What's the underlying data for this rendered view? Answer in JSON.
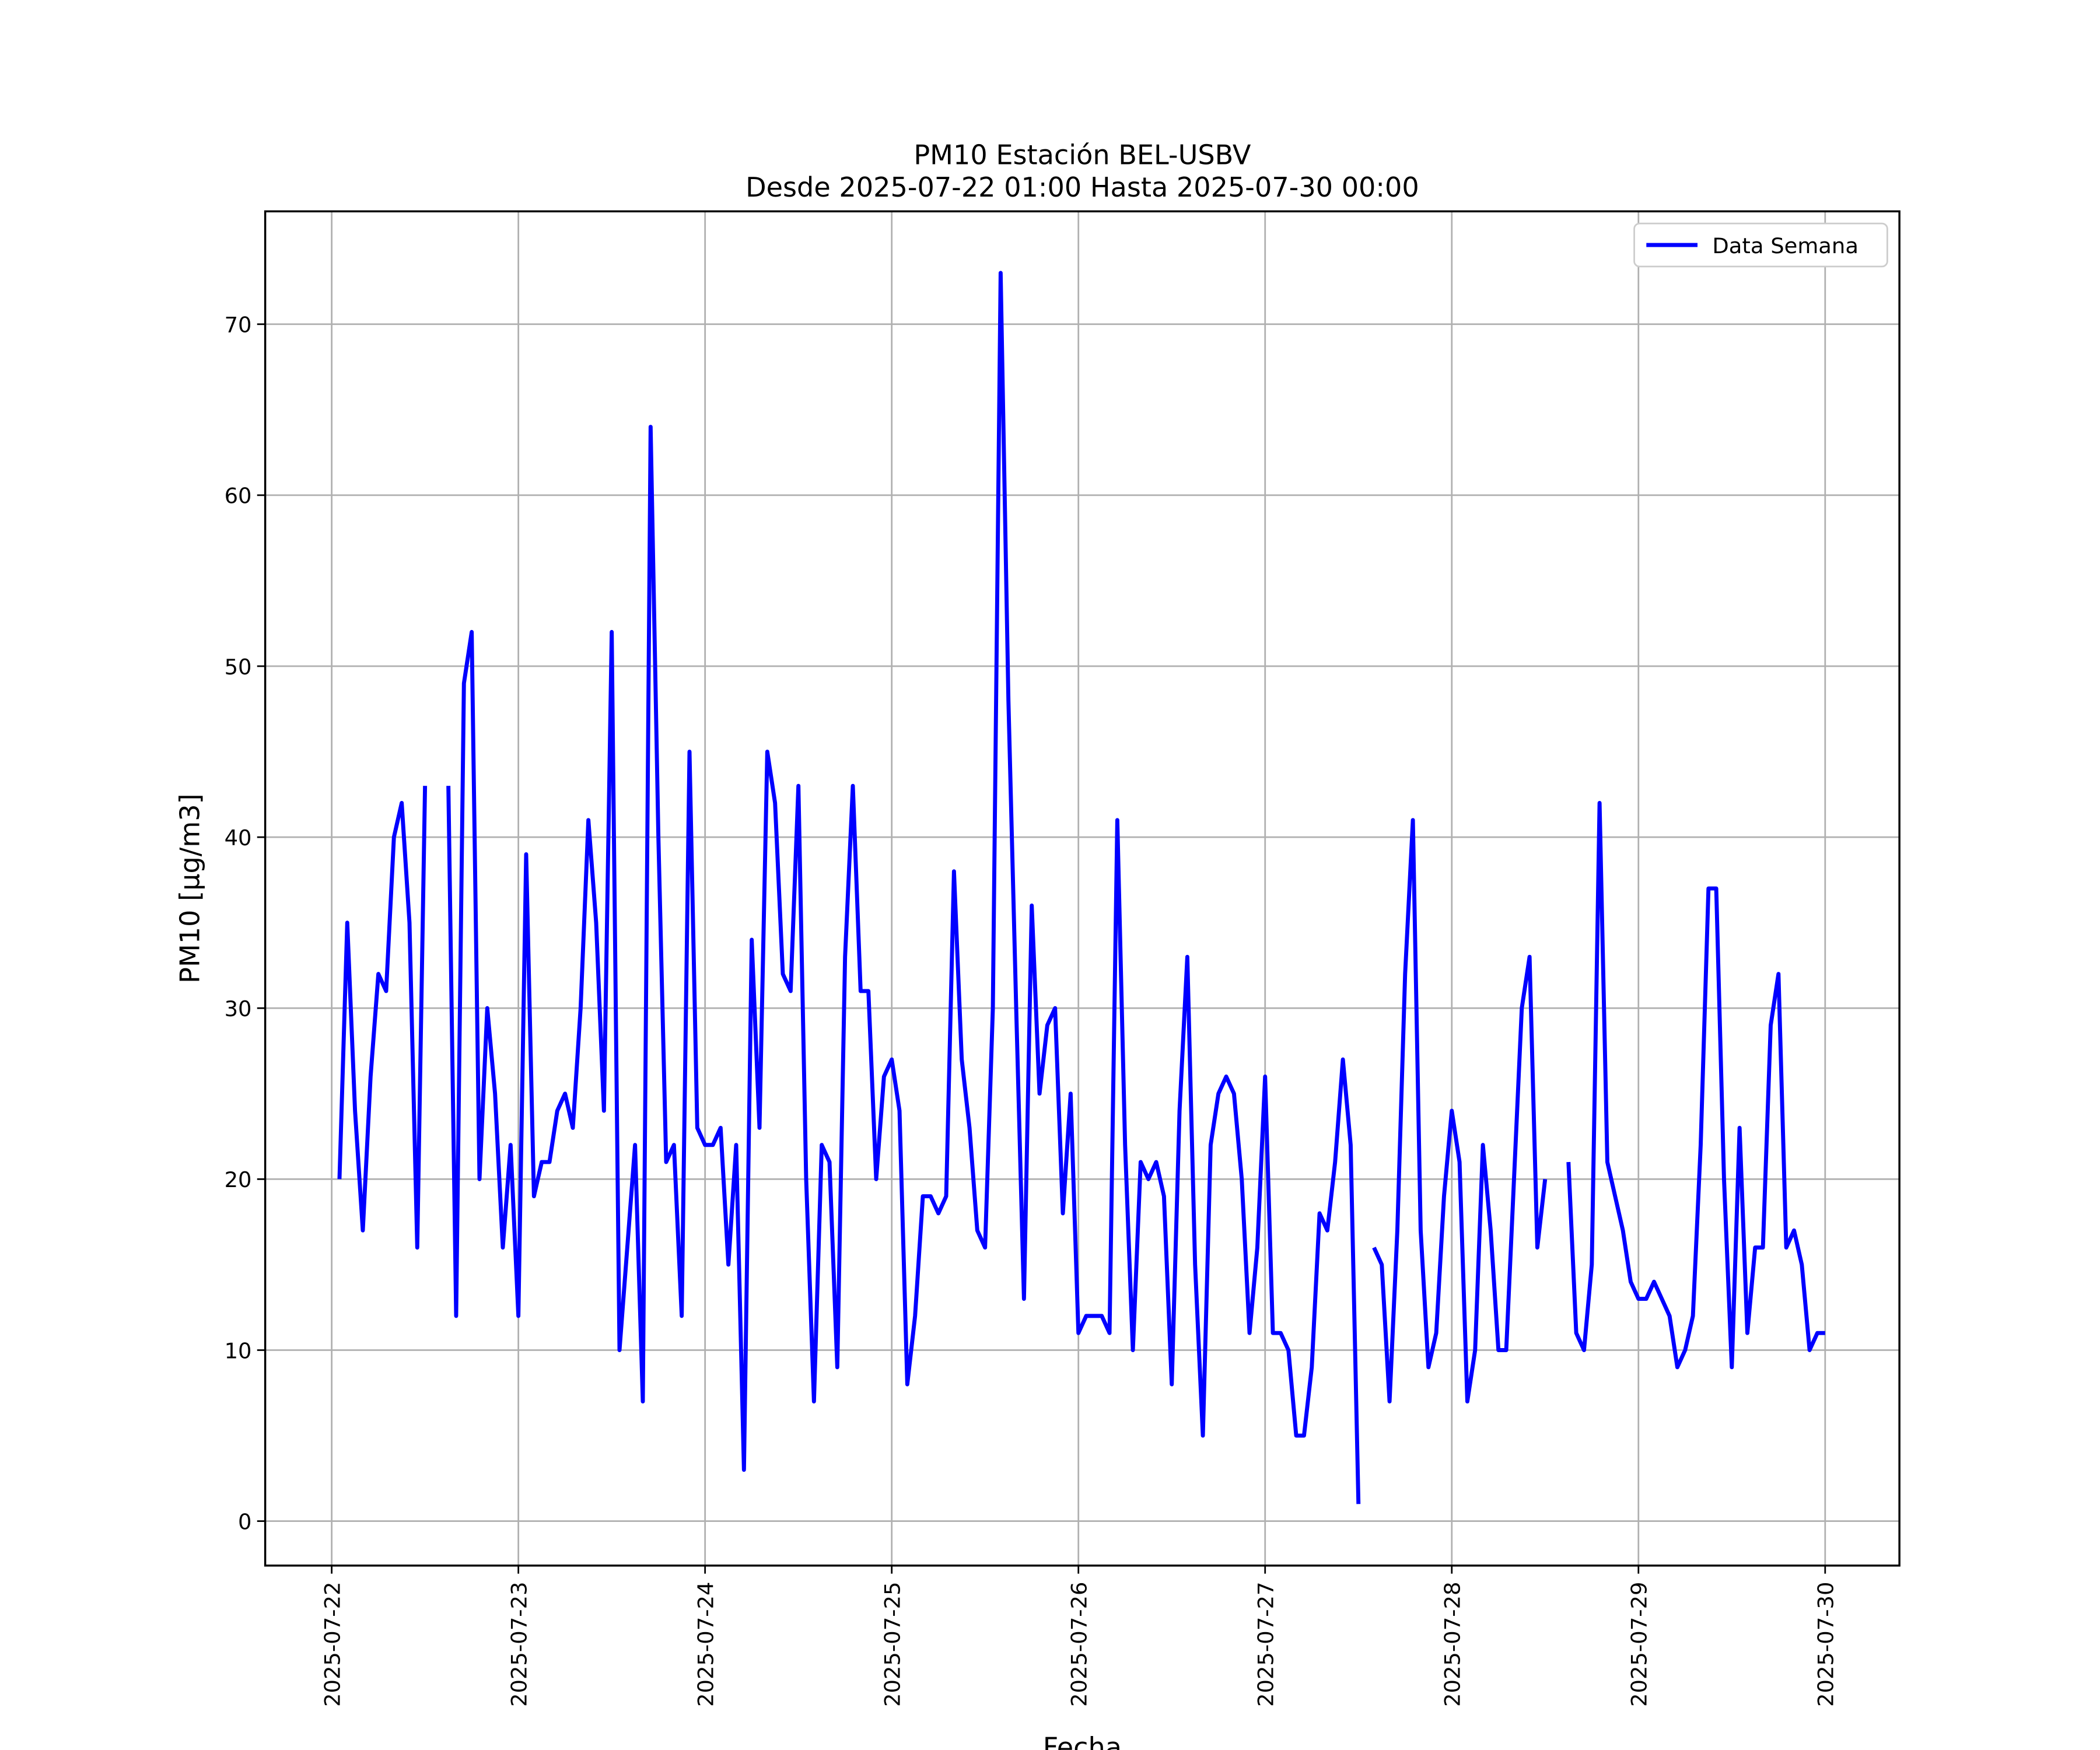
{
  "chart_data": {
    "type": "line",
    "title": "PM10 Estación BEL-USBV",
    "subtitle": "Desde 2025-07-22 01:00 Hasta 2025-07-30 00:00",
    "xlabel": "Fecha",
    "ylabel": "PM10 [μg/m3]",
    "x": [
      "2025-07-22 01:00",
      "2025-07-22 02:00",
      "2025-07-22 03:00",
      "2025-07-22 04:00",
      "2025-07-22 05:00",
      "2025-07-22 06:00",
      "2025-07-22 07:00",
      "2025-07-22 08:00",
      "2025-07-22 09:00",
      "2025-07-22 10:00",
      "2025-07-22 11:00",
      "2025-07-22 12:00",
      "2025-07-22 13:00",
      "2025-07-22 14:00",
      "2025-07-22 15:00",
      "2025-07-22 16:00",
      "2025-07-22 17:00",
      "2025-07-22 18:00",
      "2025-07-22 19:00",
      "2025-07-22 20:00",
      "2025-07-22 21:00",
      "2025-07-22 22:00",
      "2025-07-22 23:00",
      "2025-07-23 00:00",
      "2025-07-23 01:00",
      "2025-07-23 02:00",
      "2025-07-23 03:00",
      "2025-07-23 04:00",
      "2025-07-23 05:00",
      "2025-07-23 06:00",
      "2025-07-23 07:00",
      "2025-07-23 08:00",
      "2025-07-23 09:00",
      "2025-07-23 10:00",
      "2025-07-23 11:00",
      "2025-07-23 12:00",
      "2025-07-23 13:00",
      "2025-07-23 14:00",
      "2025-07-23 15:00",
      "2025-07-23 16:00",
      "2025-07-23 17:00",
      "2025-07-23 18:00",
      "2025-07-23 19:00",
      "2025-07-23 20:00",
      "2025-07-23 21:00",
      "2025-07-23 22:00",
      "2025-07-23 23:00",
      "2025-07-24 00:00",
      "2025-07-24 01:00",
      "2025-07-24 02:00",
      "2025-07-24 03:00",
      "2025-07-24 04:00",
      "2025-07-24 05:00",
      "2025-07-24 06:00",
      "2025-07-24 07:00",
      "2025-07-24 08:00",
      "2025-07-24 09:00",
      "2025-07-24 10:00",
      "2025-07-24 11:00",
      "2025-07-24 12:00",
      "2025-07-24 13:00",
      "2025-07-24 14:00",
      "2025-07-24 15:00",
      "2025-07-24 16:00",
      "2025-07-24 17:00",
      "2025-07-24 18:00",
      "2025-07-24 19:00",
      "2025-07-24 20:00",
      "2025-07-24 21:00",
      "2025-07-24 22:00",
      "2025-07-24 23:00",
      "2025-07-25 00:00",
      "2025-07-25 01:00",
      "2025-07-25 02:00",
      "2025-07-25 03:00",
      "2025-07-25 04:00",
      "2025-07-25 05:00",
      "2025-07-25 06:00",
      "2025-07-25 07:00",
      "2025-07-25 08:00",
      "2025-07-25 09:00",
      "2025-07-25 10:00",
      "2025-07-25 11:00",
      "2025-07-25 12:00",
      "2025-07-25 13:00",
      "2025-07-25 14:00",
      "2025-07-25 15:00",
      "2025-07-25 16:00",
      "2025-07-25 17:00",
      "2025-07-25 18:00",
      "2025-07-25 19:00",
      "2025-07-25 20:00",
      "2025-07-25 21:00",
      "2025-07-25 22:00",
      "2025-07-25 23:00",
      "2025-07-26 00:00",
      "2025-07-26 01:00",
      "2025-07-26 02:00",
      "2025-07-26 03:00",
      "2025-07-26 04:00",
      "2025-07-26 05:00",
      "2025-07-26 06:00",
      "2025-07-26 07:00",
      "2025-07-26 08:00",
      "2025-07-26 09:00",
      "2025-07-26 10:00",
      "2025-07-26 11:00",
      "2025-07-26 12:00",
      "2025-07-26 13:00",
      "2025-07-26 14:00",
      "2025-07-26 15:00",
      "2025-07-26 16:00",
      "2025-07-26 17:00",
      "2025-07-26 18:00",
      "2025-07-26 19:00",
      "2025-07-26 20:00",
      "2025-07-26 21:00",
      "2025-07-26 22:00",
      "2025-07-26 23:00",
      "2025-07-27 00:00",
      "2025-07-27 01:00",
      "2025-07-27 02:00",
      "2025-07-27 03:00",
      "2025-07-27 04:00",
      "2025-07-27 05:00",
      "2025-07-27 06:00",
      "2025-07-27 07:00",
      "2025-07-27 08:00",
      "2025-07-27 09:00",
      "2025-07-27 10:00",
      "2025-07-27 11:00",
      "2025-07-27 12:00",
      "2025-07-27 13:00",
      "2025-07-27 14:00",
      "2025-07-27 15:00",
      "2025-07-27 16:00",
      "2025-07-27 17:00",
      "2025-07-27 18:00",
      "2025-07-27 19:00",
      "2025-07-27 20:00",
      "2025-07-27 21:00",
      "2025-07-27 22:00",
      "2025-07-27 23:00",
      "2025-07-28 00:00",
      "2025-07-28 01:00",
      "2025-07-28 02:00",
      "2025-07-28 03:00",
      "2025-07-28 04:00",
      "2025-07-28 05:00",
      "2025-07-28 06:00",
      "2025-07-28 07:00",
      "2025-07-28 08:00",
      "2025-07-28 09:00",
      "2025-07-28 10:00",
      "2025-07-28 11:00",
      "2025-07-28 12:00",
      "2025-07-28 13:00",
      "2025-07-28 14:00",
      "2025-07-28 15:00",
      "2025-07-28 16:00",
      "2025-07-28 17:00",
      "2025-07-28 18:00",
      "2025-07-28 19:00",
      "2025-07-28 20:00",
      "2025-07-28 21:00",
      "2025-07-28 22:00",
      "2025-07-28 23:00",
      "2025-07-29 00:00",
      "2025-07-29 01:00",
      "2025-07-29 02:00",
      "2025-07-29 03:00",
      "2025-07-29 04:00",
      "2025-07-29 05:00",
      "2025-07-29 06:00",
      "2025-07-29 07:00",
      "2025-07-29 08:00",
      "2025-07-29 09:00",
      "2025-07-29 10:00",
      "2025-07-29 11:00",
      "2025-07-29 12:00",
      "2025-07-29 13:00",
      "2025-07-29 14:00",
      "2025-07-29 15:00",
      "2025-07-29 16:00",
      "2025-07-29 17:00",
      "2025-07-29 18:00",
      "2025-07-29 19:00",
      "2025-07-29 20:00",
      "2025-07-29 21:00",
      "2025-07-29 22:00",
      "2025-07-29 23:00",
      "2025-07-30 00:00"
    ],
    "series": [
      {
        "name": "Data Semana",
        "color": "#0000ff",
        "values": [
          20,
          35,
          24,
          17,
          26,
          32,
          31,
          40,
          42,
          35,
          16,
          43,
          null,
          null,
          43,
          12,
          49,
          52,
          20,
          30,
          25,
          16,
          22,
          12,
          39,
          19,
          21,
          21,
          24,
          25,
          23,
          30,
          41,
          35,
          24,
          52,
          10,
          16,
          22,
          7,
          64,
          40,
          21,
          22,
          12,
          45,
          23,
          22,
          22,
          23,
          15,
          22,
          3,
          34,
          23,
          45,
          42,
          32,
          31,
          43,
          20,
          7,
          22,
          21,
          9,
          33,
          43,
          31,
          31,
          20,
          26,
          27,
          24,
          8,
          12,
          19,
          19,
          18,
          19,
          38,
          27,
          23,
          17,
          16,
          30,
          73,
          48,
          30,
          13,
          36,
          25,
          29,
          30,
          18,
          25,
          11,
          12,
          12,
          12,
          11,
          41,
          22,
          10,
          21,
          20,
          21,
          19,
          8,
          24,
          33,
          15,
          5,
          22,
          25,
          26,
          25,
          20,
          11,
          16,
          26,
          11,
          11,
          10,
          5,
          5,
          9,
          18,
          17,
          21,
          27,
          22,
          1,
          null,
          16,
          15,
          7,
          17,
          32,
          41,
          17,
          9,
          11,
          19,
          24,
          21,
          7,
          10,
          22,
          17,
          10,
          10,
          20,
          30,
          33,
          16,
          20,
          null,
          null,
          21,
          11,
          10,
          15,
          42,
          21,
          19,
          17,
          14,
          13,
          13,
          14,
          13,
          12,
          9,
          10,
          12,
          22,
          37,
          37,
          20,
          9,
          23,
          11,
          16,
          16,
          29,
          32,
          16,
          17,
          15,
          10,
          11,
          11
        ]
      }
    ],
    "xlim": [
      "2025-07-21 15:27",
      "2025-07-30 09:33"
    ],
    "xticks": [
      "2025-07-22",
      "2025-07-23",
      "2025-07-24",
      "2025-07-25",
      "2025-07-26",
      "2025-07-27",
      "2025-07-28",
      "2025-07-29",
      "2025-07-30"
    ],
    "ylim": [
      -2.6,
      76.6
    ],
    "yticks": [
      0,
      10,
      20,
      30,
      40,
      50,
      60,
      70
    ],
    "grid": true,
    "legend": "upper right"
  }
}
